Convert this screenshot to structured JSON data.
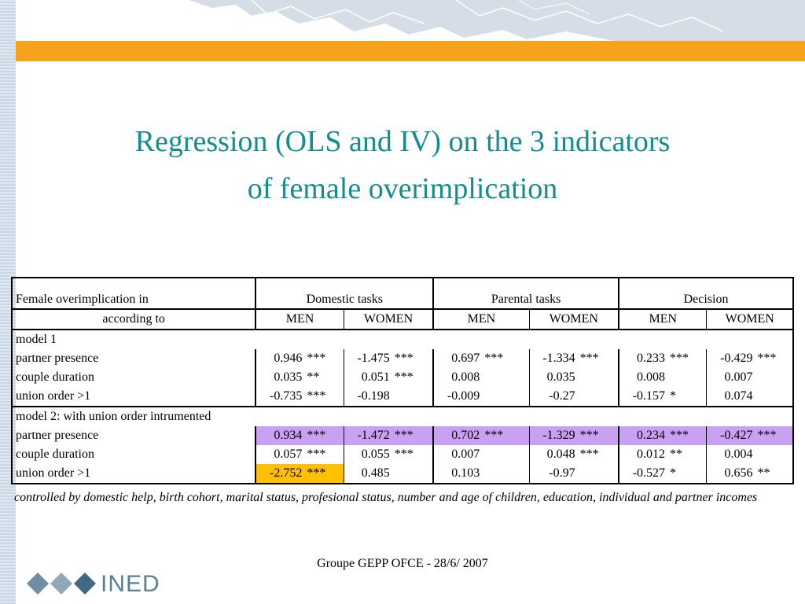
{
  "title": {
    "line1": "Regression (OLS and IV) on the 3 indicators",
    "line2": "of female overimplication"
  },
  "table": {
    "header": {
      "row_label_1": "Female overimplication in",
      "row_label_2": "according to",
      "groups": [
        "Domestic tasks",
        "Parental tasks",
        "Decision"
      ],
      "subcols": [
        "MEN",
        "WOMEN",
        "MEN",
        "WOMEN",
        "MEN",
        "WOMEN"
      ]
    },
    "model1": {
      "label": "model 1",
      "rows": [
        {
          "label": "partner presence",
          "cells": [
            [
              "0.946",
              "***"
            ],
            [
              "-1.475",
              "***"
            ],
            [
              "0.697",
              "***"
            ],
            [
              "-1.334",
              "***"
            ],
            [
              "0.233",
              "***"
            ],
            [
              "-0.429",
              "***"
            ]
          ]
        },
        {
          "label": "couple duration",
          "cells": [
            [
              "0.035",
              "**"
            ],
            [
              "0.051",
              "***"
            ],
            [
              "0.008",
              ""
            ],
            [
              "0.035",
              ""
            ],
            [
              "0.008",
              ""
            ],
            [
              "0.007",
              ""
            ]
          ]
        },
        {
          "label": "union order >1",
          "cells": [
            [
              "-0.735",
              "***"
            ],
            [
              "-0.198",
              ""
            ],
            [
              "-0.009",
              ""
            ],
            [
              "-0.27",
              ""
            ],
            [
              "-0.157",
              "*"
            ],
            [
              "0.074",
              ""
            ]
          ]
        }
      ]
    },
    "model2": {
      "label": "model 2: with union order intrumented",
      "rows": [
        {
          "label": "partner presence",
          "cells": [
            [
              "0.934",
              "***"
            ],
            [
              "-1.472",
              "***"
            ],
            [
              "0.702",
              "***"
            ],
            [
              "-1.329",
              "***"
            ],
            [
              "0.234",
              "***"
            ],
            [
              "-0.427",
              "***"
            ]
          ]
        },
        {
          "label": "couple duration",
          "cells": [
            [
              "0.057",
              "***"
            ],
            [
              "0.055",
              "***"
            ],
            [
              "0.007",
              ""
            ],
            [
              "0.048",
              "***"
            ],
            [
              "0.012",
              "**"
            ],
            [
              "0.004",
              ""
            ]
          ]
        },
        {
          "label": "union order >1",
          "cells": [
            [
              "-2.752",
              "***"
            ],
            [
              "0.485",
              ""
            ],
            [
              "0.103",
              ""
            ],
            [
              "-0.97",
              ""
            ],
            [
              "-0.527",
              "*"
            ],
            [
              "0.656",
              "**"
            ]
          ]
        }
      ]
    },
    "highlight_colors": {
      "purple": "#c9a0f2",
      "yellow": "#ffc000"
    }
  },
  "note": "controlled by domestic help, birth cohort, marital status, profesional status, number and age of children, education, individual and partner incomes",
  "footer": "Groupe GEPP OFCE - 28/6/ 2007",
  "logo": {
    "text": "INED",
    "icon": "diamonds-logo-icon"
  },
  "colors": {
    "title": "#138d8d",
    "orange_band": "#f7a21b"
  }
}
